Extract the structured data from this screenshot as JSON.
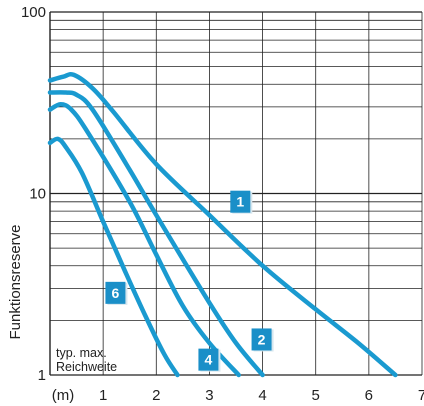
{
  "chart_data": {
    "type": "line",
    "ylabel": "Funktionsreserve",
    "xunit_label": "(m)",
    "x_ticks": [
      "1",
      "2",
      "3",
      "4",
      "5",
      "6",
      "7"
    ],
    "y_ticks": [
      "1",
      "10",
      "100"
    ],
    "xlim": [
      0,
      7
    ],
    "ylim": [
      1,
      100
    ],
    "y_scale": "log",
    "grid": true,
    "annotation": [
      "typ. max.",
      "Reichweite"
    ],
    "line_color": "#1a9ad0",
    "badge_color": "#1a8fc8",
    "series": [
      {
        "badge": "1",
        "badge_at": [
          3.6,
          8.9
        ],
        "x": [
          0,
          0.25,
          0.45,
          0.8,
          1.2,
          2.0,
          3.0,
          4.0,
          5.0,
          5.8,
          6.5
        ],
        "y": [
          42,
          44,
          45,
          38,
          28,
          14.5,
          7.6,
          4.0,
          2.3,
          1.5,
          1.0
        ]
      },
      {
        "badge": "2",
        "badge_at": [
          4.0,
          1.55
        ],
        "x": [
          0,
          0.3,
          0.5,
          0.8,
          1.5,
          2.0,
          3.0,
          3.5,
          4.0
        ],
        "y": [
          36,
          36,
          35,
          29,
          13.5,
          7.6,
          2.5,
          1.5,
          1.0
        ]
      },
      {
        "badge": "4",
        "badge_at": [
          3.0,
          1.2
        ],
        "x": [
          0,
          0.2,
          0.4,
          0.7,
          1.5,
          2.0,
          2.5,
          3.0,
          3.55
        ],
        "y": [
          29,
          31,
          29,
          22,
          9.0,
          4.6,
          2.4,
          1.5,
          1.0
        ]
      },
      {
        "badge": "6",
        "badge_at": [
          1.25,
          2.8
        ],
        "x": [
          0,
          0.15,
          0.3,
          0.6,
          1.0,
          1.4,
          1.8,
          2.15,
          2.4
        ],
        "y": [
          19,
          20,
          18,
          13,
          7.0,
          3.8,
          2.1,
          1.3,
          1.0
        ]
      }
    ]
  }
}
